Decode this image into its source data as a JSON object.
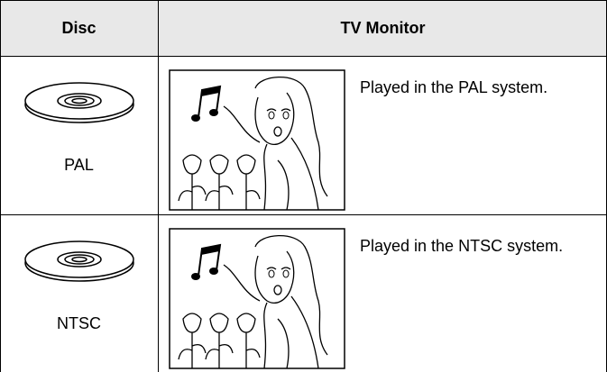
{
  "table": {
    "header": [
      "Disc",
      "TV Monitor"
    ],
    "rows": [
      {
        "disc": "PAL",
        "description": "Played in the PAL system."
      },
      {
        "disc": "NTSC",
        "description": "Played in the NTSC system."
      }
    ]
  }
}
